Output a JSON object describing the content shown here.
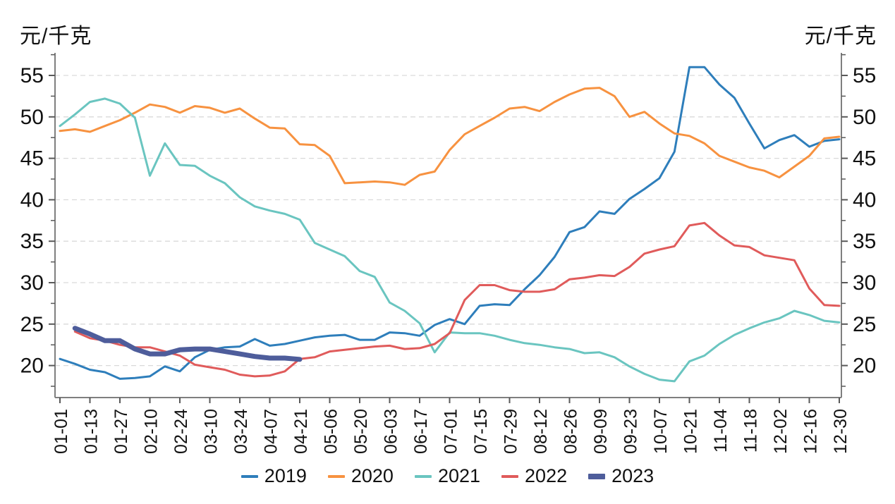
{
  "axis_titles": {
    "left": "元/千克",
    "right": "元/千克"
  },
  "chart_data": {
    "type": "line",
    "unit": "元/千克",
    "title": "",
    "x_tick_labels": [
      "01-01",
      "01-13",
      "01-27",
      "02-10",
      "02-24",
      "03-10",
      "03-24",
      "04-07",
      "04-21",
      "05-06",
      "05-20",
      "06-03",
      "06-17",
      "07-01",
      "07-15",
      "07-29",
      "08-12",
      "08-26",
      "09-09",
      "09-23",
      "10-07",
      "10-21",
      "11-04",
      "11-18",
      "12-02",
      "12-16",
      "12-30"
    ],
    "y_ticks": [
      20,
      25,
      30,
      35,
      40,
      45,
      50,
      55
    ],
    "y_minor_ticks": [
      17.5,
      22.5,
      27.5,
      32.5,
      37.5,
      42.5,
      47.5,
      52.5,
      57.5
    ],
    "ylim": [
      16.1,
      57.7
    ],
    "grid": "horizontal-dashed",
    "legend_position": "bottom-center",
    "colors": {
      "axis": "#7f7f7f",
      "tick": "#595959",
      "gridline": "#d9d9d9",
      "text": "#111111"
    },
    "series": [
      {
        "name": "2019",
        "color": "#2e7ebb",
        "width": 3,
        "start_index": 0,
        "values": [
          20.8,
          20.2,
          19.5,
          19.2,
          18.4,
          18.5,
          18.7,
          19.9,
          19.3,
          21.0,
          21.9,
          22.2,
          22.3,
          23.2,
          22.4,
          22.6,
          23.0,
          23.4,
          23.6,
          23.7,
          23.1,
          23.1,
          24.0,
          23.9,
          23.6,
          24.9,
          25.6,
          25.0,
          27.2,
          27.4,
          27.3,
          29.2,
          30.9,
          33.1,
          36.1,
          36.7,
          38.6,
          38.3,
          40.1,
          41.3,
          42.6,
          45.8,
          56.0,
          56.0,
          53.9,
          52.3,
          49.2,
          46.2,
          47.2,
          47.8,
          46.4,
          47.1,
          47.3
        ]
      },
      {
        "name": "2020",
        "color": "#f79240",
        "width": 3,
        "start_index": 0,
        "values": [
          48.3,
          48.5,
          48.2,
          48.9,
          49.6,
          50.5,
          51.5,
          51.2,
          50.5,
          51.3,
          51.1,
          50.5,
          51.0,
          49.8,
          48.7,
          48.6,
          46.7,
          46.6,
          45.3,
          42.0,
          42.1,
          42.2,
          42.1,
          41.8,
          43.0,
          43.4,
          46.0,
          47.9,
          48.9,
          49.9,
          51.0,
          51.2,
          50.7,
          51.8,
          52.7,
          53.4,
          53.5,
          52.5,
          50.0,
          50.6,
          49.2,
          48.0,
          47.7,
          46.8,
          45.3,
          44.6,
          43.9,
          43.5,
          42.7,
          44.0,
          45.3,
          47.4,
          47.6
        ]
      },
      {
        "name": "2021",
        "color": "#6ac5c0",
        "width": 3,
        "start_index": 0,
        "values": [
          48.9,
          50.3,
          51.8,
          52.2,
          51.6,
          49.9,
          42.9,
          46.8,
          44.2,
          44.1,
          42.9,
          42.0,
          40.3,
          39.2,
          38.7,
          38.3,
          37.6,
          34.8,
          34.0,
          33.2,
          31.4,
          30.7,
          27.6,
          26.6,
          25.1,
          21.6,
          24.0,
          23.9,
          23.9,
          23.6,
          23.1,
          22.7,
          22.5,
          22.2,
          22.0,
          21.5,
          21.6,
          21.0,
          19.9,
          19.0,
          18.3,
          18.1,
          20.5,
          21.2,
          22.6,
          23.7,
          24.5,
          25.2,
          25.7,
          26.6,
          26.1,
          25.4,
          25.2
        ]
      },
      {
        "name": "2022",
        "color": "#e05b5b",
        "width": 3,
        "start_index": 1,
        "values": [
          24.1,
          23.3,
          23.0,
          22.5,
          22.2,
          22.2,
          21.7,
          21.2,
          20.1,
          19.8,
          19.5,
          18.9,
          18.7,
          18.8,
          19.3,
          20.8,
          21.0,
          21.7,
          21.9,
          22.1,
          22.3,
          22.4,
          22.0,
          22.1,
          22.6,
          23.9,
          27.9,
          29.7,
          29.7,
          29.1,
          28.9,
          28.9,
          29.2,
          30.4,
          30.6,
          30.9,
          30.8,
          31.9,
          33.5,
          34.0,
          34.4,
          36.9,
          37.2,
          35.7,
          34.5,
          34.3,
          33.3,
          33.0,
          32.7,
          29.3,
          27.3,
          27.2
        ]
      },
      {
        "name": "2023",
        "color": "#4e5d9b",
        "width": 7,
        "start_index": 1,
        "values": [
          24.5,
          23.8,
          23.0,
          23.0,
          22.0,
          21.4,
          21.4,
          21.9,
          22.0,
          22.0,
          21.7,
          21.4,
          21.1,
          20.9,
          20.9,
          20.75
        ]
      }
    ]
  },
  "legend": {
    "items": [
      {
        "label": "2019",
        "color": "#2e7ebb",
        "thickness": 4
      },
      {
        "label": "2020",
        "color": "#f79240",
        "thickness": 4
      },
      {
        "label": "2021",
        "color": "#6ac5c0",
        "thickness": 4
      },
      {
        "label": "2022",
        "color": "#e05b5b",
        "thickness": 4
      },
      {
        "label": "2023",
        "color": "#4e5d9b",
        "thickness": 8
      }
    ]
  }
}
